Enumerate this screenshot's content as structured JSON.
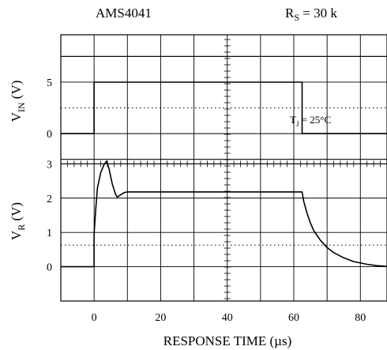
{
  "chart_data": {
    "type": "line",
    "title_left": "AMS4041",
    "title_right": {
      "prefix": "R",
      "sub": "S",
      "suffix": " = 30 k"
    },
    "xlabel": "RESPONSE TIME (µs)",
    "xlim": [
      -10,
      88
    ],
    "xticks": [
      0,
      20,
      40,
      60,
      80
    ],
    "grid": true,
    "panels": [
      {
        "id": "top",
        "ylabel": {
          "main": "V",
          "sub": "IN",
          "suffix": " (V)"
        },
        "ylim": [
          -2.6,
          9.6
        ],
        "yticks": [
          0,
          5
        ],
        "reference_line": 2.5,
        "annotation": {
          "main": "T",
          "sub": "J",
          "suffix": " = 25°C",
          "x": 58,
          "y": -2.8
        },
        "series": [
          {
            "x": [
              -10,
              0,
              0,
              62.5,
              62.5,
              88
            ],
            "y": [
              0,
              0,
              5,
              5,
              0,
              0
            ]
          }
        ]
      },
      {
        "id": "bottom",
        "ylabel": {
          "main": "V",
          "sub": "R",
          "suffix": " (V)"
        },
        "ylim": [
          -1.0,
          3.1
        ],
        "yticks": [
          0,
          1,
          2,
          3
        ],
        "reference_line": 0.63,
        "series": [
          {
            "x": [
              -10,
              0,
              0,
              0.5,
              1,
              2,
              3,
              3.8,
              4.5,
              5.5,
              6.5,
              7,
              8,
              9,
              10,
              20,
              40,
              62.5,
              63,
              64,
              65,
              66,
              68,
              70,
              72,
              75,
              78,
              82,
              85,
              88
            ],
            "y": [
              0,
              0,
              0.95,
              1.7,
              2.3,
              2.75,
              2.98,
              3.08,
              2.85,
              2.4,
              2.1,
              2.03,
              2.1,
              2.16,
              2.18,
              2.18,
              2.18,
              2.18,
              1.9,
              1.55,
              1.27,
              1.05,
              0.77,
              0.56,
              0.41,
              0.26,
              0.15,
              0.07,
              0.03,
              0.01
            ]
          }
        ]
      }
    ]
  }
}
